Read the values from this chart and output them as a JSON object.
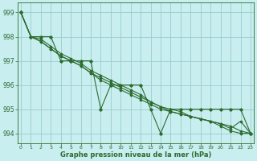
{
  "xlabel": "Graphe pression niveau de la mer (hPa)",
  "background_color": "#c8eef0",
  "grid_color": "#99cccc",
  "line_color": "#2d6b2d",
  "ylim": [
    993.6,
    999.4
  ],
  "yticks": [
    994,
    995,
    996,
    997,
    998,
    999
  ],
  "xlim": [
    -0.3,
    23.3
  ],
  "series": [
    [
      999.0,
      998.0,
      998.0,
      998.0,
      997.0,
      997.0,
      997.0,
      997.0,
      995.0,
      996.0,
      996.0,
      996.0,
      996.0,
      995.0,
      994.0,
      995.0,
      995.0,
      995.0,
      995.0,
      995.0,
      995.0,
      995.0,
      995.0,
      994.0
    ],
    [
      999.0,
      998.0,
      997.8,
      997.5,
      997.2,
      997.0,
      996.8,
      996.5,
      996.2,
      996.0,
      995.8,
      995.6,
      995.4,
      995.2,
      995.0,
      994.9,
      994.8,
      994.7,
      994.6,
      994.5,
      994.4,
      994.3,
      994.1,
      994.0
    ],
    [
      999.0,
      998.0,
      997.8,
      997.5,
      997.2,
      997.0,
      996.8,
      996.5,
      996.3,
      996.1,
      995.9,
      995.7,
      995.5,
      995.3,
      995.1,
      994.9,
      994.8,
      994.7,
      994.6,
      994.5,
      994.4,
      994.2,
      994.5,
      994.0
    ],
    [
      999.0,
      998.0,
      997.9,
      997.6,
      997.3,
      997.1,
      996.9,
      996.6,
      996.4,
      996.2,
      996.0,
      995.8,
      995.6,
      995.3,
      995.1,
      995.0,
      994.9,
      994.7,
      994.6,
      994.5,
      994.3,
      994.1,
      994.0,
      994.0
    ]
  ]
}
